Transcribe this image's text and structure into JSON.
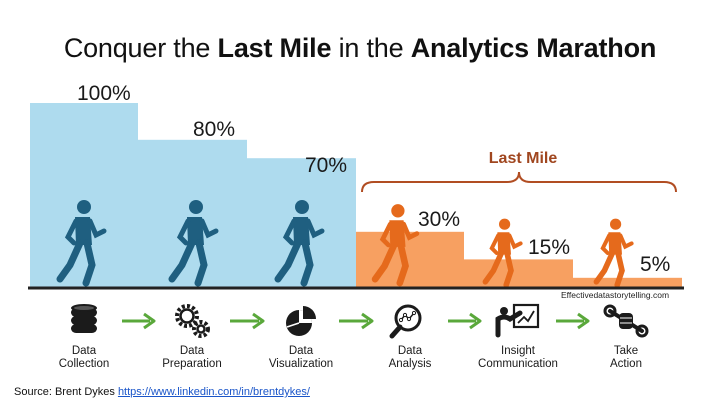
{
  "title": {
    "part1": "Conquer the ",
    "bold1": "Last Mile",
    "part2": " in the ",
    "bold2": "Analytics Marathon"
  },
  "colors": {
    "blue": "#aedbee",
    "orange": "#f7a061",
    "runner_blue": "#1f5f80",
    "runner_orange": "#e56a1c",
    "arrow_green": "#5aa83b",
    "brace": "#b14d22",
    "baseline": "#222222"
  },
  "chart_data": {
    "type": "bar",
    "title": "Conquer the Last Mile in the Analytics Marathon",
    "categories": [
      "Data Collection",
      "Data Preparation",
      "Data Visualization",
      "Data Analysis",
      "Insight Communication",
      "Take Action"
    ],
    "values": [
      100,
      80,
      70,
      30,
      15,
      5
    ],
    "value_labels": [
      "100%",
      "80%",
      "70%",
      "30%",
      "15%",
      "5%"
    ],
    "unit": "%",
    "ylim": [
      0,
      100
    ],
    "xlabel": "",
    "ylabel": "",
    "bracket_label": "Last Mile",
    "bracket_categories": [
      "Data Analysis",
      "Insight Communication",
      "Take Action"
    ]
  },
  "stages": [
    {
      "line1": "Data",
      "line2": "Collection",
      "icon": "database-icon"
    },
    {
      "line1": "Data",
      "line2": "Preparation",
      "icon": "gears-icon"
    },
    {
      "line1": "Data",
      "line2": "Visualization",
      "icon": "pie-chart-icon"
    },
    {
      "line1": "Data",
      "line2": "Analysis",
      "icon": "magnifier-icon"
    },
    {
      "line1": "Insight",
      "line2": "Communication",
      "icon": "presenter-icon"
    },
    {
      "line1": "Take",
      "line2": "Action",
      "icon": "wrench-fist-icon"
    }
  ],
  "credit": "Effectivedatastorytelling.com",
  "source": {
    "prefix": "Source:  Brent Dykes ",
    "link": "https://www.linkedin.com/in/brentdykes/"
  }
}
